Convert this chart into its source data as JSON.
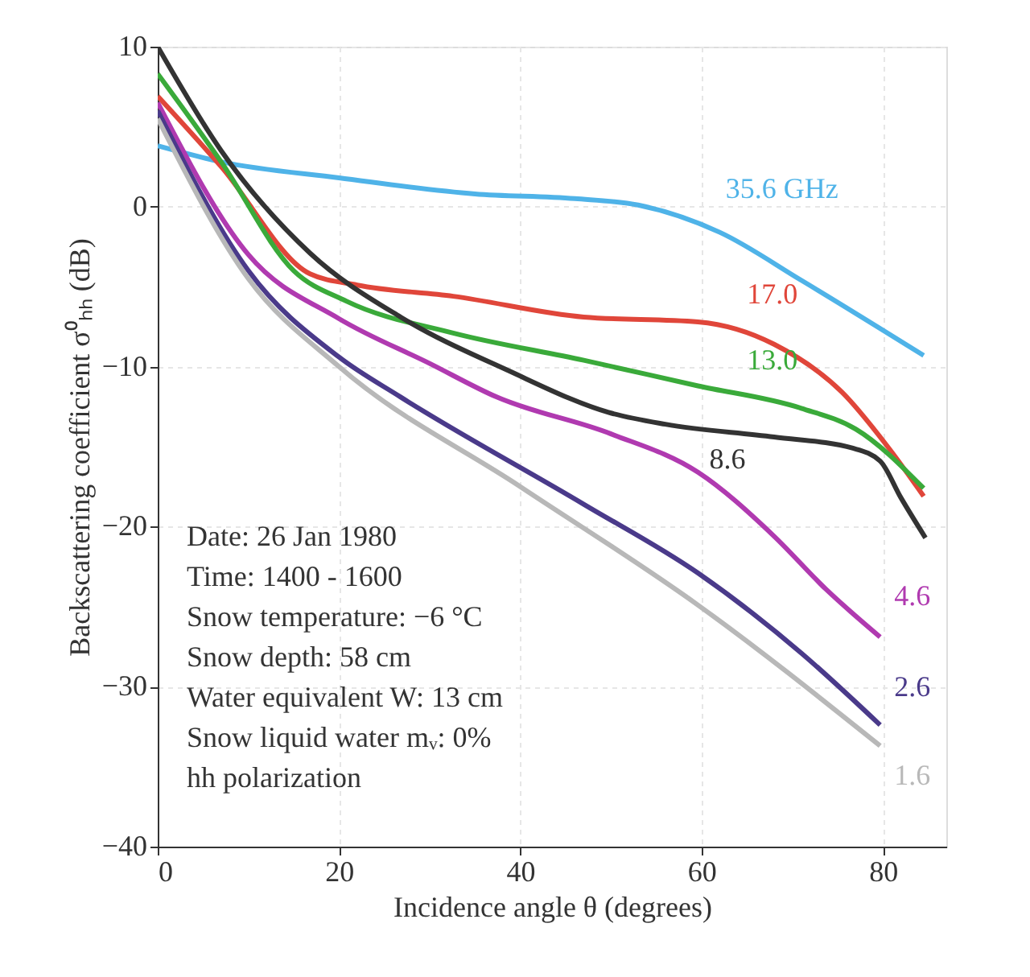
{
  "chart_data": {
    "type": "line",
    "xlabel": "Incidence angle θ (degrees)",
    "ylabel": "Backscattering coefficient σ⁰ₕₕ (dB)",
    "xlim": [
      0,
      87
    ],
    "ylim": [
      -40,
      10
    ],
    "xticks": [
      0,
      20,
      40,
      60,
      80
    ],
    "yticks": [
      -40,
      -30,
      -20,
      -10,
      0,
      10
    ],
    "grid": true,
    "marker": "none",
    "line_style": "solid",
    "series": [
      {
        "name": "35.6 GHz",
        "color": "#4fb3e8",
        "x": [
          0,
          7,
          20,
          35,
          46,
          53,
          62,
          71,
          84.5
        ],
        "values": [
          3.8,
          2.8,
          1.8,
          0.8,
          0.5,
          0.1,
          -1.6,
          -4.6,
          -9.3
        ]
      },
      {
        "name": "17.0",
        "color": "#e0463a",
        "x": [
          0,
          7,
          16.8,
          22,
          32.6,
          47,
          59.6,
          68,
          75.5,
          80.8,
          84.5
        ],
        "values": [
          6.9,
          2.5,
          -4.2,
          -4.9,
          -5.6,
          -6.9,
          -7.2,
          -8.6,
          -11.6,
          -15.2,
          -18.1
        ]
      },
      {
        "name": "13.0",
        "color": "#3aaa3a",
        "x": [
          0,
          7,
          15,
          20.8,
          32.6,
          47,
          59.6,
          71,
          77,
          84.5
        ],
        "values": [
          8.3,
          2.8,
          -4,
          -5.9,
          -7.9,
          -9.6,
          -11.2,
          -12.6,
          -13.9,
          -17.6
        ]
      },
      {
        "name": "8.6",
        "color": "#333333",
        "x": [
          0,
          7,
          16.8,
          26.8,
          38.5,
          50,
          56,
          68,
          76.7,
          79.7,
          82,
          84.7
        ],
        "values": [
          10,
          3.5,
          -2.9,
          -6.9,
          -10.2,
          -12.9,
          -13.6,
          -14.4,
          -15.1,
          -15.9,
          -18.2,
          -20.7
        ]
      },
      {
        "name": "4.6",
        "color": "#b03ab0",
        "x": [
          0,
          10,
          20,
          30,
          37.4,
          50,
          59.6,
          68,
          73.7,
          79.7
        ],
        "values": [
          6.5,
          -3,
          -7,
          -9.8,
          -11.9,
          -14.2,
          -16.6,
          -20.6,
          -23.9,
          -26.9
        ]
      },
      {
        "name": "2.6",
        "color": "#4a3a8a",
        "x": [
          0,
          10,
          20,
          26.8,
          47,
          59.6,
          71,
          79.7
        ],
        "values": [
          6,
          -4,
          -9.4,
          -11.9,
          -18.6,
          -22.9,
          -27.9,
          -32.4
        ]
      },
      {
        "name": "1.6",
        "color": "#b8b8b8",
        "x": [
          0,
          10,
          20,
          40,
          59.6,
          79.7
        ],
        "values": [
          5.5,
          -4.5,
          -10,
          -17.5,
          -24.9,
          -33.7
        ]
      }
    ],
    "annotations": [
      "Date: 26 Jan 1980",
      "Time: 1400 - 1600",
      "Snow temperature: −6 °C",
      "Snow depth: 58 cm",
      "Water equivalent W: 13 cm",
      "Snow liquid water mᵥ: 0%",
      "hh polarization"
    ]
  }
}
